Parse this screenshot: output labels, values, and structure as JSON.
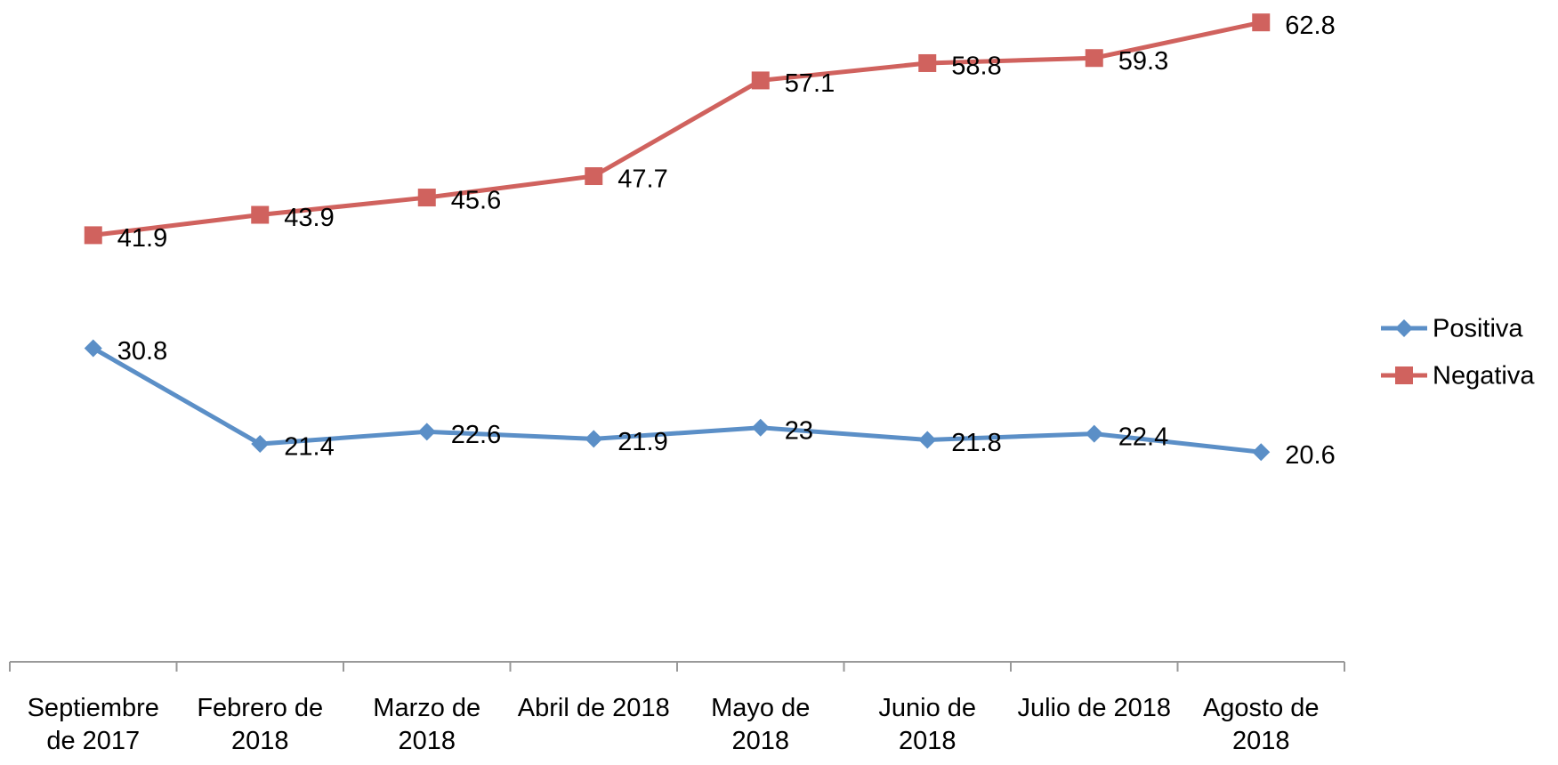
{
  "chart_data": {
    "type": "line",
    "categories": [
      "Septiembre de 2017",
      "Febrero de 2018",
      "Marzo de 2018",
      "Abril de 2018",
      "Mayo de 2018",
      "Junio de 2018",
      "Julio de 2018",
      "Agosto de 2018"
    ],
    "series": [
      {
        "name": "Positiva",
        "color": "#5b8fc7",
        "marker": "diamond",
        "values": [
          30.8,
          21.4,
          22.6,
          21.9,
          23,
          21.8,
          22.4,
          20.6
        ]
      },
      {
        "name": "Negativa",
        "color": "#d0625e",
        "marker": "square",
        "values": [
          41.9,
          43.9,
          45.6,
          47.7,
          57.1,
          58.8,
          59.3,
          62.8
        ]
      }
    ],
    "ylim": [
      0,
      65
    ],
    "legend": "right",
    "grid": false
  }
}
